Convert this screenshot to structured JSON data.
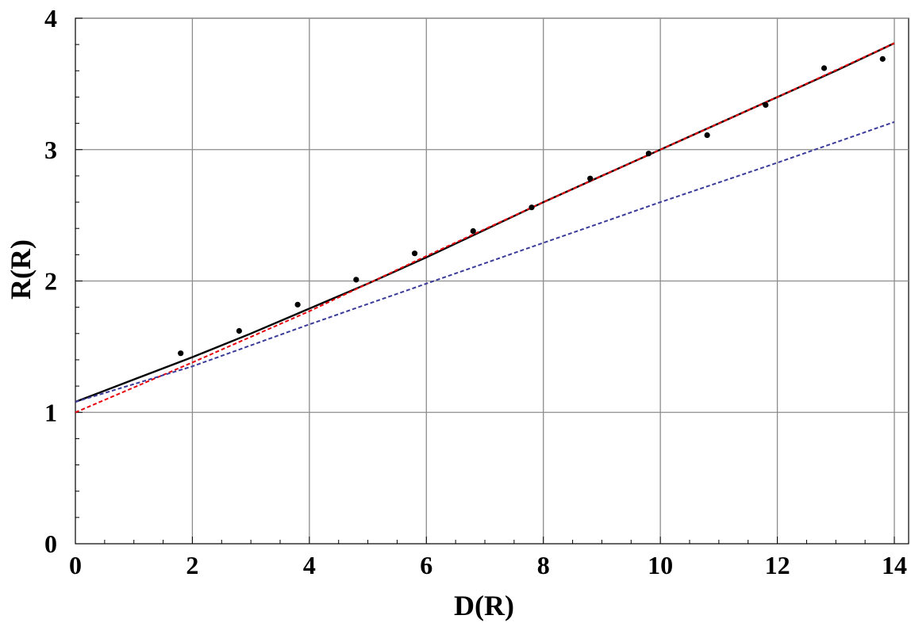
{
  "chart_data": {
    "type": "line",
    "title": "",
    "xlabel": "D(R)",
    "ylabel": "R(R)",
    "xlim": [
      0,
      14
    ],
    "ylim": [
      0,
      4
    ],
    "x_ticks": [
      0,
      2,
      4,
      6,
      8,
      10,
      12,
      14
    ],
    "y_ticks": [
      0,
      1,
      2,
      3,
      4
    ],
    "grid": true,
    "legend": "none",
    "points": {
      "color": "#000000",
      "x": [
        1.8,
        2.8,
        3.8,
        4.8,
        5.8,
        6.8,
        7.8,
        8.8,
        9.8,
        10.8,
        11.8,
        12.8,
        13.8
      ],
      "y": [
        1.45,
        1.62,
        1.82,
        2.01,
        2.21,
        2.38,
        2.56,
        2.78,
        2.97,
        3.11,
        3.34,
        3.62,
        3.69
      ]
    },
    "series": [
      {
        "style": "solid",
        "color": "#000000",
        "x": [
          0,
          1,
          2,
          3,
          4,
          5,
          6,
          7,
          8,
          9,
          10,
          11,
          12,
          13,
          14
        ],
        "y": [
          1.08,
          1.25,
          1.42,
          1.6,
          1.79,
          1.98,
          2.18,
          2.39,
          2.6,
          2.8,
          3.0,
          3.2,
          3.4,
          3.6,
          3.81
        ]
      },
      {
        "style": "dashed",
        "color": "#e8000b",
        "x": [
          0,
          2,
          4,
          6,
          8,
          10,
          12,
          14
        ],
        "y": [
          1.0,
          1.38,
          1.77,
          2.19,
          2.6,
          3.0,
          3.4,
          3.81
        ]
      },
      {
        "style": "dashed",
        "color": "#3a3a9a",
        "x": [
          0,
          2,
          4,
          6,
          8,
          10,
          12,
          14
        ],
        "y": [
          1.08,
          1.35,
          1.67,
          1.98,
          2.29,
          2.6,
          2.9,
          3.21
        ]
      }
    ]
  }
}
